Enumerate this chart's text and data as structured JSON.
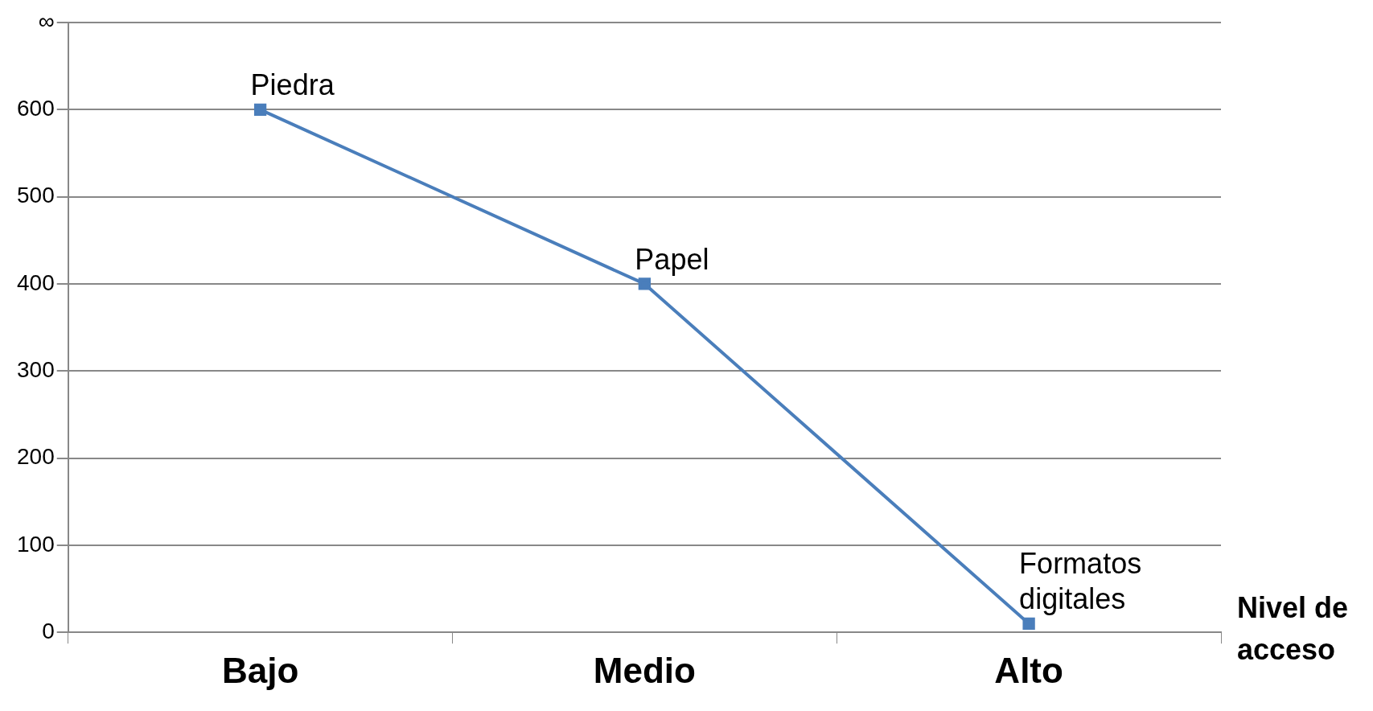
{
  "chart_data": {
    "type": "line",
    "categories": [
      "Bajo",
      "Medio",
      "Alto"
    ],
    "series": [
      {
        "color": "#4a7ebb",
        "values": [
          600,
          400,
          10
        ]
      }
    ],
    "xlabel": "Nivel de acceso",
    "ylim": [
      0,
      700
    ],
    "yticks": [
      0,
      100,
      200,
      300,
      400,
      500,
      600,
      {
        "value": 700,
        "label": "∞"
      }
    ],
    "grid": "y",
    "legend": false,
    "marker": "square",
    "line_style": "solid",
    "annotations": [
      {
        "text": "Piedra",
        "x": "Bajo",
        "y": 600
      },
      {
        "text": "Papel",
        "x": "Medio",
        "y": 400
      },
      {
        "text": "Formatos digitales",
        "x": "Alto",
        "y": 10
      }
    ]
  }
}
